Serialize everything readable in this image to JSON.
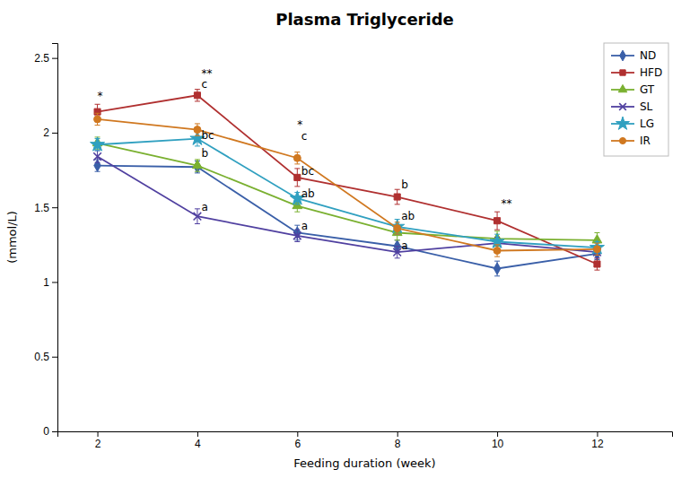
{
  "chart_data": {
    "type": "line",
    "title": "Plasma Triglyceride",
    "x_label": "Feeding duration (week)",
    "y_label": "(mmol/L)",
    "x": [
      2,
      4,
      6,
      8,
      10,
      12
    ],
    "xlim": [
      1.2,
      13.5
    ],
    "xticks": [
      2,
      4,
      6,
      8,
      10,
      12
    ],
    "ylim": [
      0,
      2.6
    ],
    "yticks": [
      0,
      0.5,
      1,
      1.5,
      2,
      2.5
    ],
    "grid": false,
    "legend": "upper right",
    "series": [
      {
        "name": "ND",
        "color": "#3a5fa8",
        "marker": "diamond",
        "values": [
          1.78,
          1.77,
          1.33,
          1.24,
          1.09,
          1.19
        ],
        "errors": [
          0.04,
          0.04,
          0.05,
          0.04,
          0.05,
          0.04
        ]
      },
      {
        "name": "HFD",
        "color": "#b03030",
        "marker": "square",
        "values": [
          2.14,
          2.25,
          1.7,
          1.57,
          1.41,
          1.12
        ],
        "errors": [
          0.05,
          0.04,
          0.06,
          0.05,
          0.06,
          0.04
        ]
      },
      {
        "name": "GT",
        "color": "#7ab030",
        "marker": "triangle",
        "values": [
          1.93,
          1.78,
          1.51,
          1.33,
          1.29,
          1.28
        ],
        "errors": [
          0.04,
          0.04,
          0.04,
          0.05,
          0.05,
          0.05
        ]
      },
      {
        "name": "SL",
        "color": "#5040a0",
        "marker": "x",
        "values": [
          1.84,
          1.44,
          1.31,
          1.2,
          1.26,
          1.2
        ],
        "errors": [
          0.04,
          0.05,
          0.04,
          0.04,
          0.04,
          0.04
        ]
      },
      {
        "name": "LG",
        "color": "#30a0c0",
        "marker": "star",
        "values": [
          1.92,
          1.96,
          1.56,
          1.37,
          1.27,
          1.23
        ],
        "errors": [
          0.04,
          0.05,
          0.04,
          0.05,
          0.05,
          0.04
        ]
      },
      {
        "name": "IR",
        "color": "#d07820",
        "marker": "circle",
        "values": [
          2.09,
          2.02,
          1.83,
          1.36,
          1.21,
          1.22
        ],
        "errors": [
          0.04,
          0.04,
          0.04,
          0.04,
          0.04,
          0.04
        ]
      }
    ],
    "annotations": [
      {
        "text": "*",
        "x": 2,
        "y": 2.22
      },
      {
        "text": "**",
        "x": 4.08,
        "y": 2.37
      },
      {
        "text": "c",
        "x": 4.08,
        "y": 2.3
      },
      {
        "text": "bc",
        "x": 4.08,
        "y": 1.96
      },
      {
        "text": "b",
        "x": 4.08,
        "y": 1.84
      },
      {
        "text": "a",
        "x": 4.08,
        "y": 1.48
      },
      {
        "text": "*",
        "x": 6.0,
        "y": 2.03
      },
      {
        "text": "c",
        "x": 6.08,
        "y": 1.95
      },
      {
        "text": "bc",
        "x": 6.08,
        "y": 1.72
      },
      {
        "text": "ab",
        "x": 6.08,
        "y": 1.57
      },
      {
        "text": "a",
        "x": 6.08,
        "y": 1.35
      },
      {
        "text": "b",
        "x": 8.08,
        "y": 1.63
      },
      {
        "text": "ab",
        "x": 8.08,
        "y": 1.42
      },
      {
        "text": "a",
        "x": 8.08,
        "y": 1.22
      },
      {
        "text": "**",
        "x": 10.08,
        "y": 1.5
      }
    ]
  }
}
